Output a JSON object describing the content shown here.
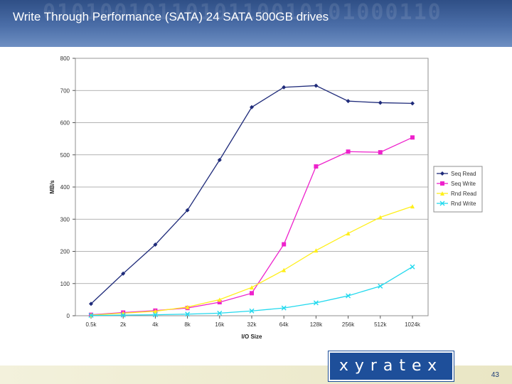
{
  "slide": {
    "title": "Write Through Performance (SATA) 24 SATA 500GB drives",
    "background_text": "0101001011010110010101000110",
    "logo_text": "xyratex",
    "page_number": "43"
  },
  "chart_data": {
    "type": "line",
    "xlabel": "I/O Size",
    "ylabel": "MB/s",
    "ylim": [
      0,
      800
    ],
    "yticks": [
      0,
      100,
      200,
      300,
      400,
      500,
      600,
      700,
      800
    ],
    "categories": [
      "0.5k",
      "2k",
      "4k",
      "8k",
      "16k",
      "32k",
      "64k",
      "128k",
      "256k",
      "512k",
      "1024k"
    ],
    "grid": true,
    "legend_position": "right",
    "series": [
      {
        "name": "Seq Read",
        "color": "#1f2b7a",
        "marker": "diamond",
        "values": [
          37,
          131,
          221,
          328,
          484,
          648,
          710,
          715,
          667,
          662,
          660
        ]
      },
      {
        "name": "Seq Write",
        "color": "#ee22cc",
        "marker": "square",
        "values": [
          3,
          10,
          16,
          24,
          42,
          70,
          222,
          464,
          510,
          508,
          554
        ]
      },
      {
        "name": "Rnd Read",
        "color": "#ffef1a",
        "marker": "triangle",
        "values": [
          2,
          8,
          14,
          27,
          50,
          88,
          142,
          203,
          256,
          306,
          340
        ]
      },
      {
        "name": "Rnd Write",
        "color": "#22d9ee",
        "marker": "x",
        "values": [
          1,
          2,
          3,
          5,
          8,
          15,
          24,
          40,
          62,
          92,
          152
        ]
      }
    ]
  }
}
